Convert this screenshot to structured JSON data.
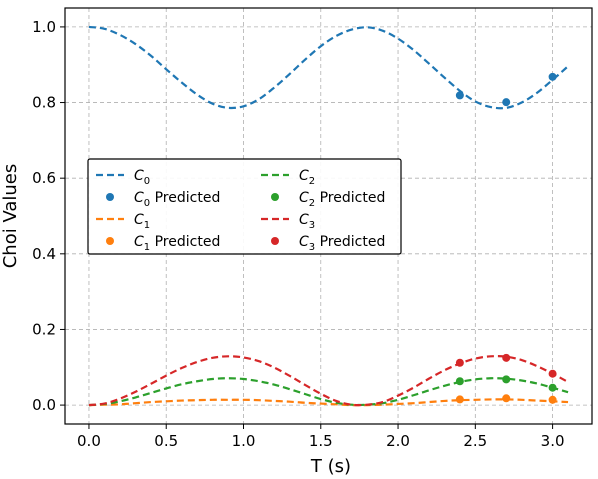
{
  "chart_data": {
    "type": "line",
    "xlabel": "T (s)",
    "ylabel": "Choi Values",
    "xlim": [
      -0.155,
      3.255
    ],
    "ylim": [
      -0.05,
      1.05
    ],
    "xticks": [
      "0.0",
      "0.5",
      "1.0",
      "1.5",
      "2.0",
      "2.5",
      "3.0"
    ],
    "yticks": [
      "0.0",
      "0.2",
      "0.4",
      "0.6",
      "0.8",
      "1.0"
    ],
    "grid": true,
    "legend_position": "center-left",
    "curve_x": [
      0.0,
      0.1,
      0.2,
      0.3,
      0.4,
      0.5,
      0.6,
      0.7,
      0.8,
      0.9,
      1.0,
      1.1,
      1.2,
      1.3,
      1.4,
      1.5,
      1.6,
      1.7,
      1.8,
      1.9,
      2.0,
      2.1,
      2.2,
      2.3,
      2.4,
      2.5,
      2.6,
      2.7,
      2.8,
      2.9,
      3.0,
      3.1
    ],
    "series": [
      {
        "name": "C",
        "sub": "0",
        "color": "#1f77b4",
        "values": [
          1.0,
          0.995,
          0.979,
          0.955,
          0.924,
          0.888,
          0.853,
          0.821,
          0.797,
          0.786,
          0.79,
          0.809,
          0.84,
          0.876,
          0.914,
          0.949,
          0.976,
          0.993,
          0.999,
          0.99,
          0.969,
          0.939,
          0.903,
          0.866,
          0.831,
          0.803,
          0.788,
          0.786,
          0.8,
          0.826,
          0.86,
          0.896
        ],
        "predicted_x": [
          2.4,
          2.7,
          3.0
        ],
        "predicted_values": [
          0.819,
          0.801,
          0.868
        ]
      },
      {
        "name": "C",
        "sub": "1",
        "color": "#ff7f0e",
        "values": [
          0.0,
          0.001,
          0.002,
          0.005,
          0.008,
          0.01,
          0.012,
          0.013,
          0.014,
          0.014,
          0.014,
          0.013,
          0.011,
          0.009,
          0.006,
          0.004,
          0.002,
          0.0,
          0.0,
          0.001,
          0.003,
          0.005,
          0.008,
          0.011,
          0.013,
          0.014,
          0.015,
          0.015,
          0.014,
          0.012,
          0.01,
          0.008
        ],
        "predicted_x": [
          2.4,
          2.7,
          3.0
        ],
        "predicted_values": [
          0.015,
          0.018,
          0.014
        ]
      },
      {
        "name": "C",
        "sub": "2",
        "color": "#2ca02c",
        "values": [
          0.0,
          0.003,
          0.01,
          0.02,
          0.032,
          0.044,
          0.055,
          0.063,
          0.069,
          0.071,
          0.069,
          0.063,
          0.054,
          0.042,
          0.029,
          0.016,
          0.006,
          0.001,
          0.001,
          0.005,
          0.014,
          0.026,
          0.039,
          0.051,
          0.061,
          0.068,
          0.071,
          0.07,
          0.065,
          0.057,
          0.046,
          0.034
        ],
        "predicted_x": [
          2.4,
          2.7,
          3.0
        ],
        "predicted_values": [
          0.063,
          0.068,
          0.046
        ]
      },
      {
        "name": "C",
        "sub": "3",
        "color": "#d62728",
        "values": [
          0.0,
          0.004,
          0.017,
          0.035,
          0.056,
          0.078,
          0.098,
          0.114,
          0.125,
          0.129,
          0.126,
          0.116,
          0.099,
          0.077,
          0.053,
          0.03,
          0.011,
          0.001,
          0.001,
          0.008,
          0.025,
          0.046,
          0.07,
          0.092,
          0.11,
          0.123,
          0.129,
          0.128,
          0.119,
          0.103,
          0.083,
          0.061
        ],
        "predicted_x": [
          2.4,
          2.7,
          3.0
        ],
        "predicted_values": [
          0.112,
          0.125,
          0.083
        ]
      }
    ],
    "predicted_suffix": " Predicted"
  }
}
